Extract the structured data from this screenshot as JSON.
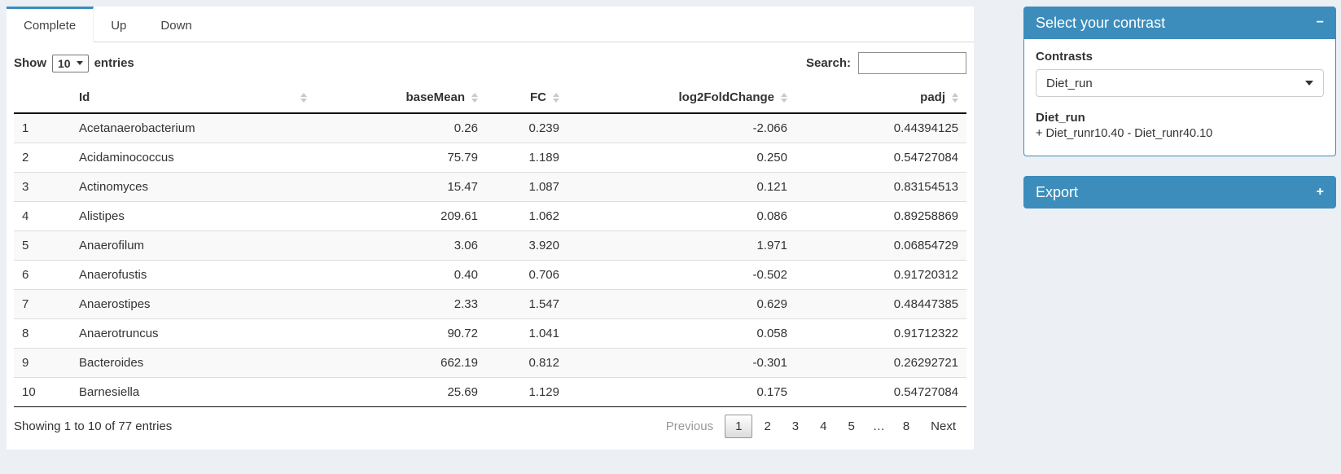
{
  "colors": {
    "accent": "#3c8dbc",
    "page_bg": "#ecf0f5",
    "stripe_bg": "#f9f9f9"
  },
  "tabs": [
    {
      "label": "Complete",
      "active": true
    },
    {
      "label": "Up",
      "active": false
    },
    {
      "label": "Down",
      "active": false
    }
  ],
  "toolbar": {
    "show_label": "Show",
    "page_length": "10",
    "entries_label": "entries",
    "search_label": "Search:",
    "search_value": ""
  },
  "table": {
    "columns": [
      {
        "label": "",
        "sortable": false,
        "align": "left"
      },
      {
        "label": "Id",
        "sortable": true,
        "align": "left"
      },
      {
        "label": "baseMean",
        "sortable": true,
        "align": "right"
      },
      {
        "label": "FC",
        "sortable": true,
        "align": "right"
      },
      {
        "label": "log2FoldChange",
        "sortable": true,
        "align": "right"
      },
      {
        "label": "padj",
        "sortable": true,
        "align": "right"
      }
    ],
    "rows": [
      [
        "1",
        "Acetanaerobacterium",
        "0.26",
        "0.239",
        "-2.066",
        "0.44394125"
      ],
      [
        "2",
        "Acidaminococcus",
        "75.79",
        "1.189",
        "0.250",
        "0.54727084"
      ],
      [
        "3",
        "Actinomyces",
        "15.47",
        "1.087",
        "0.121",
        "0.83154513"
      ],
      [
        "4",
        "Alistipes",
        "209.61",
        "1.062",
        "0.086",
        "0.89258869"
      ],
      [
        "5",
        "Anaerofilum",
        "3.06",
        "3.920",
        "1.971",
        "0.06854729"
      ],
      [
        "6",
        "Anaerofustis",
        "0.40",
        "0.706",
        "-0.502",
        "0.91720312"
      ],
      [
        "7",
        "Anaerostipes",
        "2.33",
        "1.547",
        "0.629",
        "0.48447385"
      ],
      [
        "8",
        "Anaerotruncus",
        "90.72",
        "1.041",
        "0.058",
        "0.91712322"
      ],
      [
        "9",
        "Bacteroides",
        "662.19",
        "0.812",
        "-0.301",
        "0.26292721"
      ],
      [
        "10",
        "Barnesiella",
        "25.69",
        "1.129",
        "0.175",
        "0.54727084"
      ]
    ]
  },
  "footer": {
    "info": "Showing 1 to 10 of 77 entries",
    "pagination": [
      {
        "label": "Previous",
        "state": "disabled"
      },
      {
        "label": "1",
        "state": "current"
      },
      {
        "label": "2",
        "state": "page"
      },
      {
        "label": "3",
        "state": "page"
      },
      {
        "label": "4",
        "state": "page"
      },
      {
        "label": "5",
        "state": "page"
      },
      {
        "label": "…",
        "state": "ellipsis"
      },
      {
        "label": "8",
        "state": "page"
      },
      {
        "label": "Next",
        "state": "page"
      }
    ]
  },
  "sidebar": {
    "contrast_panel": {
      "title": "Select your contrast",
      "collapse_icon": "−",
      "contrasts_label": "Contrasts",
      "selected_contrast": "Diet_run",
      "contrast_name": "Diet_run",
      "contrast_formula": "+ Diet_runr10.40 - Diet_runr40.10"
    },
    "export_panel": {
      "title": "Export",
      "collapse_icon": "+"
    }
  }
}
